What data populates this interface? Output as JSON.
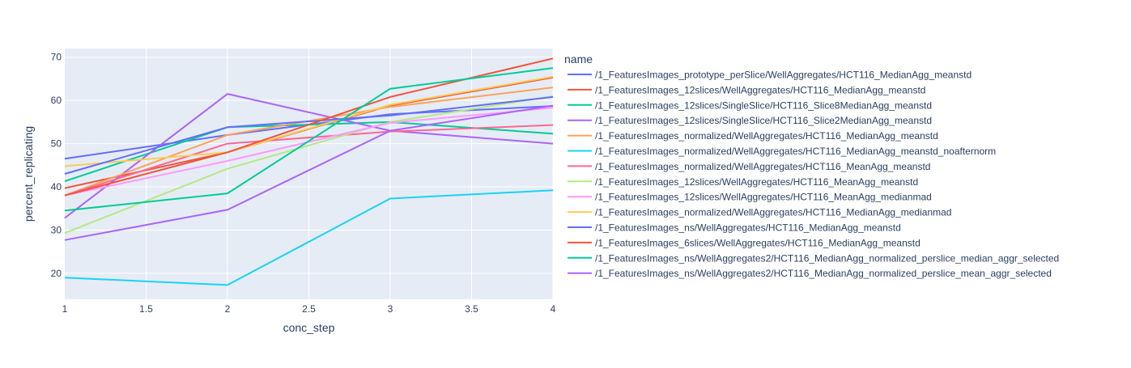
{
  "chart_data": {
    "type": "line",
    "xlabel": "conc_step",
    "ylabel": "percent_replicating",
    "xlim": [
      1,
      4
    ],
    "ylim": [
      14,
      72
    ],
    "x_ticks": [
      1,
      1.5,
      2,
      2.5,
      3,
      3.5,
      4
    ],
    "x_tick_labels": [
      "1",
      "1.5",
      "2",
      "2.5",
      "3",
      "3.5",
      "4"
    ],
    "y_ticks": [
      20,
      30,
      40,
      50,
      60,
      70
    ],
    "y_tick_labels": [
      "20",
      "30",
      "40",
      "50",
      "60",
      "70"
    ],
    "grid": true,
    "background": "#E5ECF6",
    "legend": {
      "title": "name",
      "placement": "right"
    },
    "x": [
      1,
      2,
      3,
      4
    ],
    "series": [
      {
        "name": "/1_FeaturesImages_prototype_perSlice/WellAggregates/HCT116_MedianAgg_meanstd",
        "color": "#636EFA",
        "values": [
          46.5,
          52.0,
          56.8,
          58.7
        ]
      },
      {
        "name": "/1_FeaturesImages_12slices/WellAggregates/HCT116_MedianAgg_meanstd",
        "color": "#EF553B",
        "values": [
          39.7,
          48.0,
          58.8,
          65.3
        ]
      },
      {
        "name": "/1_FeaturesImages_12slices/SingleSlice/HCT116_Slice8MedianAgg_meanstd",
        "color": "#00CC96",
        "values": [
          41.3,
          53.8,
          55.0,
          52.3
        ]
      },
      {
        "name": "/1_FeaturesImages_12slices/SingleSlice/HCT116_Slice2MedianAgg_meanstd",
        "color": "#AB63FA",
        "values": [
          32.8,
          61.5,
          53.0,
          50.0
        ]
      },
      {
        "name": "/1_FeaturesImages_normalized/WellAggregates/HCT116_MedianAgg_meanstd",
        "color": "#FFA15A",
        "values": [
          38.0,
          52.0,
          58.5,
          63.0
        ]
      },
      {
        "name": "/1_FeaturesImages_normalized/WellAggregates/HCT116_MedianAgg_meanstd_noafternorm",
        "color": "#19D3F3",
        "values": [
          19.0,
          17.3,
          37.3,
          39.2
        ]
      },
      {
        "name": "/1_FeaturesImages_normalized/WellAggregates/HCT116_MeanAgg_meanstd",
        "color": "#FF6692",
        "values": [
          38.0,
          50.0,
          52.8,
          54.3
        ]
      },
      {
        "name": "/1_FeaturesImages_12slices/WellAggregates/HCT116_MeanAgg_meanstd",
        "color": "#B6E880",
        "values": [
          29.3,
          44.2,
          55.0,
          61.0
        ]
      },
      {
        "name": "/1_FeaturesImages_12slices/WellAggregates/HCT116_MeanAgg_medianmad",
        "color": "#FF97FF",
        "values": [
          38.0,
          46.0,
          54.8,
          58.3
        ]
      },
      {
        "name": "/1_FeaturesImages_normalized/WellAggregates/HCT116_MedianAgg_medianmad",
        "color": "#FECB52",
        "values": [
          44.8,
          48.0,
          59.0,
          65.5
        ]
      },
      {
        "name": "/1_FeaturesImages_ns/WellAggregates/HCT116_MedianAgg_meanstd",
        "color": "#636EFA",
        "values": [
          43.0,
          53.8,
          56.5,
          60.8
        ]
      },
      {
        "name": "/1_FeaturesImages_6slices/WellAggregates/HCT116_MedianAgg_meanstd",
        "color": "#EF553B",
        "values": [
          38.0,
          48.0,
          60.8,
          69.7
        ]
      },
      {
        "name": "/1_FeaturesImages_ns/WellAggregates2/HCT116_MedianAgg_normalized_perslice_median_aggr_selected",
        "color": "#00CC96",
        "values": [
          34.5,
          38.5,
          62.7,
          67.5
        ]
      },
      {
        "name": "/1_FeaturesImages_ns/WellAggregates2/HCT116_MedianAgg_normalized_perslice_mean_aggr_selected",
        "color": "#AB63FA",
        "values": [
          27.7,
          34.7,
          53.0,
          58.8
        ]
      }
    ]
  }
}
